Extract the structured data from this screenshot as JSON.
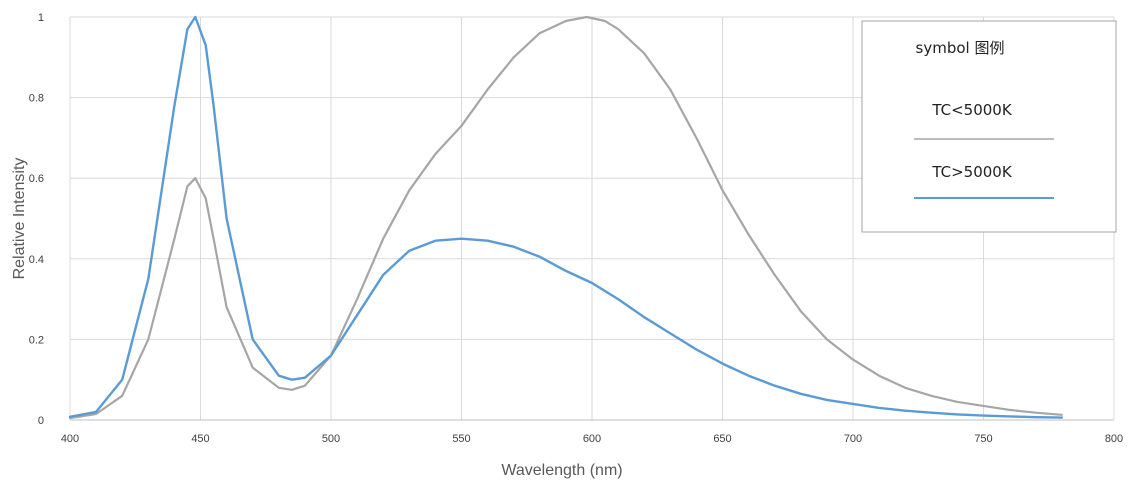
{
  "chart_data": {
    "type": "line",
    "xlabel": "Wavelength (nm)",
    "ylabel": "Relative Intensity",
    "xlim": [
      400,
      800
    ],
    "ylim": [
      0,
      1
    ],
    "x_ticks": [
      400,
      450,
      500,
      550,
      600,
      650,
      700,
      750,
      800
    ],
    "y_ticks": [
      0,
      0.2,
      0.4,
      0.6,
      0.8,
      1
    ],
    "x_tick_labels": [
      "400",
      "450",
      "500",
      "550",
      "600",
      "650",
      "700",
      "750",
      "800"
    ],
    "y_tick_labels": [
      "0",
      "0.2",
      "0.4",
      "0.6",
      "0.8",
      "1"
    ],
    "grid": true,
    "legend": {
      "title": "symbol 图例",
      "placement": "top-right"
    },
    "series": [
      {
        "name": "TC<5000K",
        "color": "#a6a6a6",
        "x": [
          400,
          410,
          420,
          430,
          440,
          445,
          448,
          452,
          455,
          460,
          470,
          480,
          485,
          490,
          500,
          510,
          520,
          530,
          540,
          550,
          560,
          570,
          580,
          590,
          598,
          605,
          610,
          620,
          630,
          640,
          650,
          660,
          670,
          680,
          690,
          700,
          710,
          720,
          730,
          740,
          750,
          760,
          770,
          780
        ],
        "values": [
          0.005,
          0.015,
          0.06,
          0.2,
          0.45,
          0.58,
          0.6,
          0.55,
          0.45,
          0.28,
          0.13,
          0.08,
          0.075,
          0.085,
          0.16,
          0.3,
          0.45,
          0.57,
          0.66,
          0.73,
          0.82,
          0.9,
          0.96,
          0.99,
          1.0,
          0.99,
          0.97,
          0.91,
          0.82,
          0.7,
          0.57,
          0.46,
          0.36,
          0.27,
          0.2,
          0.15,
          0.11,
          0.08,
          0.06,
          0.045,
          0.035,
          0.025,
          0.018,
          0.013
        ]
      },
      {
        "name": "TC>5000K",
        "color": "#5b9bd5",
        "x": [
          400,
          410,
          420,
          430,
          440,
          445,
          448,
          452,
          455,
          460,
          470,
          480,
          485,
          490,
          500,
          510,
          520,
          530,
          540,
          550,
          560,
          570,
          580,
          590,
          600,
          610,
          620,
          630,
          640,
          650,
          660,
          670,
          680,
          690,
          700,
          710,
          720,
          730,
          740,
          750,
          760,
          770,
          780
        ],
        "values": [
          0.008,
          0.02,
          0.1,
          0.35,
          0.78,
          0.97,
          1.0,
          0.93,
          0.78,
          0.5,
          0.2,
          0.11,
          0.1,
          0.105,
          0.16,
          0.26,
          0.36,
          0.42,
          0.445,
          0.45,
          0.445,
          0.43,
          0.405,
          0.37,
          0.34,
          0.3,
          0.255,
          0.215,
          0.175,
          0.14,
          0.11,
          0.085,
          0.065,
          0.05,
          0.04,
          0.03,
          0.023,
          0.018,
          0.014,
          0.011,
          0.009,
          0.007,
          0.006
        ]
      }
    ]
  }
}
